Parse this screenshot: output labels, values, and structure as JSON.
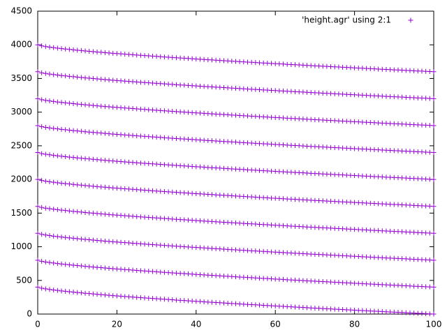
{
  "chart_data": {
    "type": "scatter",
    "color": "#9400d3",
    "legend": "top-right",
    "xlim": [
      0,
      100
    ],
    "ylim": [
      0,
      4500
    ],
    "xticks": [
      0,
      20,
      40,
      60,
      80,
      100
    ],
    "yticks": [
      0,
      500,
      1000,
      1500,
      2000,
      2500,
      3000,
      3500,
      4000,
      4500
    ],
    "x": [
      0,
      1,
      2,
      3,
      4,
      5,
      6,
      7,
      8,
      9,
      10,
      11,
      12,
      13,
      14,
      15,
      16,
      17,
      18,
      19,
      20,
      21,
      22,
      23,
      24,
      25,
      26,
      27,
      28,
      29,
      30,
      31,
      32,
      33,
      34,
      35,
      36,
      37,
      38,
      39,
      40,
      41,
      42,
      43,
      44,
      45,
      46,
      47,
      48,
      49,
      50,
      51,
      52,
      53,
      54,
      55,
      56,
      57,
      58,
      59,
      60,
      61,
      62,
      63,
      64,
      65,
      66,
      67,
      68,
      69,
      70,
      71,
      72,
      73,
      74,
      75,
      76,
      77,
      78,
      79,
      80,
      81,
      82,
      83,
      84,
      85,
      86,
      87,
      88,
      89,
      90,
      91,
      92,
      93,
      94,
      95,
      96,
      97,
      98,
      99,
      100
    ],
    "series": [
      {
        "name": "'height.agr' using 2:1",
        "values": [
          400,
          384,
          374,
          366,
          358,
          351,
          344,
          338,
          332,
          326,
          320,
          315,
          309,
          304,
          299,
          294,
          289,
          284,
          279,
          274,
          270,
          266,
          261,
          257,
          253,
          248,
          244,
          240,
          236,
          232,
          228,
          224,
          220,
          216,
          212,
          208,
          204,
          201,
          197,
          193,
          189,
          186,
          182,
          178,
          175,
          171,
          168,
          164,
          161,
          157,
          154,
          150,
          147,
          143,
          140,
          137,
          133,
          130,
          127,
          123,
          120,
          117,
          114,
          110,
          107,
          104,
          101,
          98,
          94,
          91,
          88,
          85,
          82,
          79,
          76,
          73,
          70,
          67,
          64,
          61,
          58,
          55,
          52,
          49,
          46,
          43,
          40,
          37,
          34,
          31,
          28,
          26,
          23,
          20,
          17,
          14,
          11,
          9,
          6,
          3,
          0
        ]
      },
      {
        "values": [
          800,
          784,
          774,
          766,
          758,
          751,
          744,
          738,
          732,
          726,
          720,
          715,
          709,
          704,
          699,
          694,
          689,
          684,
          679,
          674,
          670,
          666,
          661,
          657,
          653,
          648,
          644,
          640,
          636,
          632,
          628,
          624,
          620,
          616,
          612,
          608,
          604,
          601,
          597,
          593,
          589,
          586,
          582,
          578,
          575,
          571,
          568,
          564,
          561,
          557,
          554,
          550,
          547,
          543,
          540,
          537,
          533,
          530,
          527,
          523,
          520,
          517,
          514,
          510,
          507,
          504,
          501,
          498,
          494,
          491,
          488,
          485,
          482,
          479,
          476,
          473,
          470,
          467,
          464,
          461,
          458,
          455,
          452,
          449,
          446,
          443,
          440,
          437,
          434,
          431,
          428,
          426,
          423,
          420,
          417,
          414,
          411,
          409,
          406,
          403,
          400
        ]
      },
      {
        "values": [
          1200,
          1184,
          1174,
          1166,
          1158,
          1151,
          1144,
          1138,
          1132,
          1126,
          1120,
          1115,
          1109,
          1104,
          1099,
          1094,
          1089,
          1084,
          1079,
          1074,
          1070,
          1066,
          1061,
          1057,
          1053,
          1048,
          1044,
          1040,
          1036,
          1032,
          1028,
          1024,
          1020,
          1016,
          1012,
          1008,
          1004,
          1001,
          997,
          993,
          989,
          986,
          982,
          978,
          975,
          971,
          968,
          964,
          961,
          957,
          954,
          950,
          947,
          943,
          940,
          937,
          933,
          930,
          927,
          923,
          920,
          917,
          914,
          910,
          907,
          904,
          901,
          898,
          894,
          891,
          888,
          885,
          882,
          879,
          876,
          873,
          870,
          867,
          864,
          861,
          858,
          855,
          852,
          849,
          846,
          843,
          840,
          837,
          834,
          831,
          828,
          826,
          823,
          820,
          817,
          814,
          811,
          809,
          806,
          803,
          800
        ]
      },
      {
        "values": [
          1600,
          1584,
          1574,
          1566,
          1558,
          1551,
          1544,
          1538,
          1532,
          1526,
          1520,
          1515,
          1509,
          1504,
          1499,
          1494,
          1489,
          1484,
          1479,
          1474,
          1470,
          1466,
          1461,
          1457,
          1453,
          1448,
          1444,
          1440,
          1436,
          1432,
          1428,
          1424,
          1420,
          1416,
          1412,
          1408,
          1404,
          1401,
          1397,
          1393,
          1389,
          1386,
          1382,
          1378,
          1375,
          1371,
          1368,
          1364,
          1361,
          1357,
          1354,
          1350,
          1347,
          1343,
          1340,
          1337,
          1333,
          1330,
          1327,
          1323,
          1320,
          1317,
          1314,
          1310,
          1307,
          1304,
          1301,
          1298,
          1294,
          1291,
          1288,
          1285,
          1282,
          1279,
          1276,
          1273,
          1270,
          1267,
          1264,
          1261,
          1258,
          1255,
          1252,
          1249,
          1246,
          1243,
          1240,
          1237,
          1234,
          1231,
          1228,
          1226,
          1223,
          1220,
          1217,
          1214,
          1211,
          1209,
          1206,
          1203,
          1200
        ]
      },
      {
        "values": [
          2000,
          1984,
          1974,
          1966,
          1958,
          1951,
          1944,
          1938,
          1932,
          1926,
          1920,
          1915,
          1909,
          1904,
          1899,
          1894,
          1889,
          1884,
          1879,
          1874,
          1870,
          1866,
          1861,
          1857,
          1853,
          1848,
          1844,
          1840,
          1836,
          1832,
          1828,
          1824,
          1820,
          1816,
          1812,
          1808,
          1804,
          1801,
          1797,
          1793,
          1789,
          1786,
          1782,
          1778,
          1775,
          1771,
          1768,
          1764,
          1761,
          1757,
          1754,
          1750,
          1747,
          1743,
          1740,
          1737,
          1733,
          1730,
          1727,
          1723,
          1720,
          1717,
          1714,
          1710,
          1707,
          1704,
          1701,
          1698,
          1694,
          1691,
          1688,
          1685,
          1682,
          1679,
          1676,
          1673,
          1670,
          1667,
          1664,
          1661,
          1658,
          1655,
          1652,
          1649,
          1646,
          1643,
          1640,
          1637,
          1634,
          1631,
          1628,
          1626,
          1623,
          1620,
          1617,
          1614,
          1611,
          1609,
          1606,
          1603,
          1600
        ]
      },
      {
        "values": [
          2400,
          2384,
          2374,
          2366,
          2358,
          2351,
          2344,
          2338,
          2332,
          2326,
          2320,
          2315,
          2309,
          2304,
          2299,
          2294,
          2289,
          2284,
          2279,
          2274,
          2270,
          2266,
          2261,
          2257,
          2253,
          2248,
          2244,
          2240,
          2236,
          2232,
          2228,
          2224,
          2220,
          2216,
          2212,
          2208,
          2204,
          2201,
          2197,
          2193,
          2189,
          2186,
          2182,
          2178,
          2175,
          2171,
          2168,
          2164,
          2161,
          2157,
          2154,
          2150,
          2147,
          2143,
          2140,
          2137,
          2133,
          2130,
          2127,
          2123,
          2120,
          2117,
          2114,
          2110,
          2107,
          2104,
          2101,
          2098,
          2094,
          2091,
          2088,
          2085,
          2082,
          2079,
          2076,
          2073,
          2070,
          2067,
          2064,
          2061,
          2058,
          2055,
          2052,
          2049,
          2046,
          2043,
          2040,
          2037,
          2034,
          2031,
          2028,
          2026,
          2023,
          2020,
          2017,
          2014,
          2011,
          2009,
          2006,
          2003,
          2000
        ]
      },
      {
        "values": [
          2800,
          2784,
          2774,
          2766,
          2758,
          2751,
          2744,
          2738,
          2732,
          2726,
          2720,
          2715,
          2709,
          2704,
          2699,
          2694,
          2689,
          2684,
          2679,
          2674,
          2670,
          2666,
          2661,
          2657,
          2653,
          2648,
          2644,
          2640,
          2636,
          2632,
          2628,
          2624,
          2620,
          2616,
          2612,
          2608,
          2604,
          2601,
          2597,
          2593,
          2589,
          2586,
          2582,
          2578,
          2575,
          2571,
          2568,
          2564,
          2561,
          2557,
          2554,
          2550,
          2547,
          2543,
          2540,
          2537,
          2533,
          2530,
          2527,
          2523,
          2520,
          2517,
          2514,
          2510,
          2507,
          2504,
          2501,
          2498,
          2494,
          2491,
          2488,
          2485,
          2482,
          2479,
          2476,
          2473,
          2470,
          2467,
          2464,
          2461,
          2458,
          2455,
          2452,
          2449,
          2446,
          2443,
          2440,
          2437,
          2434,
          2431,
          2428,
          2426,
          2423,
          2420,
          2417,
          2414,
          2411,
          2409,
          2406,
          2403,
          2400
        ]
      },
      {
        "values": [
          3200,
          3184,
          3174,
          3166,
          3158,
          3151,
          3144,
          3138,
          3132,
          3126,
          3120,
          3115,
          3109,
          3104,
          3099,
          3094,
          3089,
          3084,
          3079,
          3074,
          3070,
          3066,
          3061,
          3057,
          3053,
          3048,
          3044,
          3040,
          3036,
          3032,
          3028,
          3024,
          3020,
          3016,
          3012,
          3008,
          3004,
          3001,
          2997,
          2993,
          2989,
          2986,
          2982,
          2978,
          2975,
          2971,
          2968,
          2964,
          2961,
          2957,
          2954,
          2950,
          2947,
          2943,
          2940,
          2937,
          2933,
          2930,
          2927,
          2923,
          2920,
          2917,
          2914,
          2910,
          2907,
          2904,
          2901,
          2898,
          2894,
          2891,
          2888,
          2885,
          2882,
          2879,
          2876,
          2873,
          2870,
          2867,
          2864,
          2861,
          2858,
          2855,
          2852,
          2849,
          2846,
          2843,
          2840,
          2837,
          2834,
          2831,
          2828,
          2826,
          2823,
          2820,
          2817,
          2814,
          2811,
          2809,
          2806,
          2803,
          2800
        ]
      },
      {
        "values": [
          3600,
          3584,
          3574,
          3566,
          3558,
          3551,
          3544,
          3538,
          3532,
          3526,
          3520,
          3515,
          3509,
          3504,
          3499,
          3494,
          3489,
          3484,
          3479,
          3474,
          3470,
          3466,
          3461,
          3457,
          3453,
          3448,
          3444,
          3440,
          3436,
          3432,
          3428,
          3424,
          3420,
          3416,
          3412,
          3408,
          3404,
          3401,
          3397,
          3393,
          3389,
          3386,
          3382,
          3378,
          3375,
          3371,
          3368,
          3364,
          3361,
          3357,
          3354,
          3350,
          3347,
          3343,
          3340,
          3337,
          3333,
          3330,
          3327,
          3323,
          3320,
          3317,
          3314,
          3310,
          3307,
          3304,
          3301,
          3298,
          3294,
          3291,
          3288,
          3285,
          3282,
          3279,
          3276,
          3273,
          3270,
          3267,
          3264,
          3261,
          3258,
          3255,
          3252,
          3249,
          3246,
          3243,
          3240,
          3237,
          3234,
          3231,
          3228,
          3226,
          3223,
          3220,
          3217,
          3214,
          3211,
          3209,
          3206,
          3203,
          3200
        ]
      },
      {
        "values": [
          4000,
          3984,
          3974,
          3966,
          3958,
          3951,
          3944,
          3938,
          3932,
          3926,
          3920,
          3915,
          3909,
          3904,
          3899,
          3894,
          3889,
          3884,
          3879,
          3874,
          3870,
          3866,
          3861,
          3857,
          3853,
          3848,
          3844,
          3840,
          3836,
          3832,
          3828,
          3824,
          3820,
          3816,
          3812,
          3808,
          3804,
          3801,
          3797,
          3793,
          3789,
          3786,
          3782,
          3778,
          3775,
          3771,
          3768,
          3764,
          3761,
          3757,
          3754,
          3750,
          3747,
          3743,
          3740,
          3737,
          3733,
          3730,
          3727,
          3723,
          3720,
          3717,
          3714,
          3710,
          3707,
          3704,
          3701,
          3698,
          3694,
          3691,
          3688,
          3685,
          3682,
          3679,
          3676,
          3673,
          3670,
          3667,
          3664,
          3661,
          3658,
          3655,
          3652,
          3649,
          3646,
          3643,
          3640,
          3637,
          3634,
          3631,
          3628,
          3626,
          3623,
          3620,
          3617,
          3614,
          3611,
          3609,
          3606,
          3603,
          3600
        ]
      }
    ]
  }
}
